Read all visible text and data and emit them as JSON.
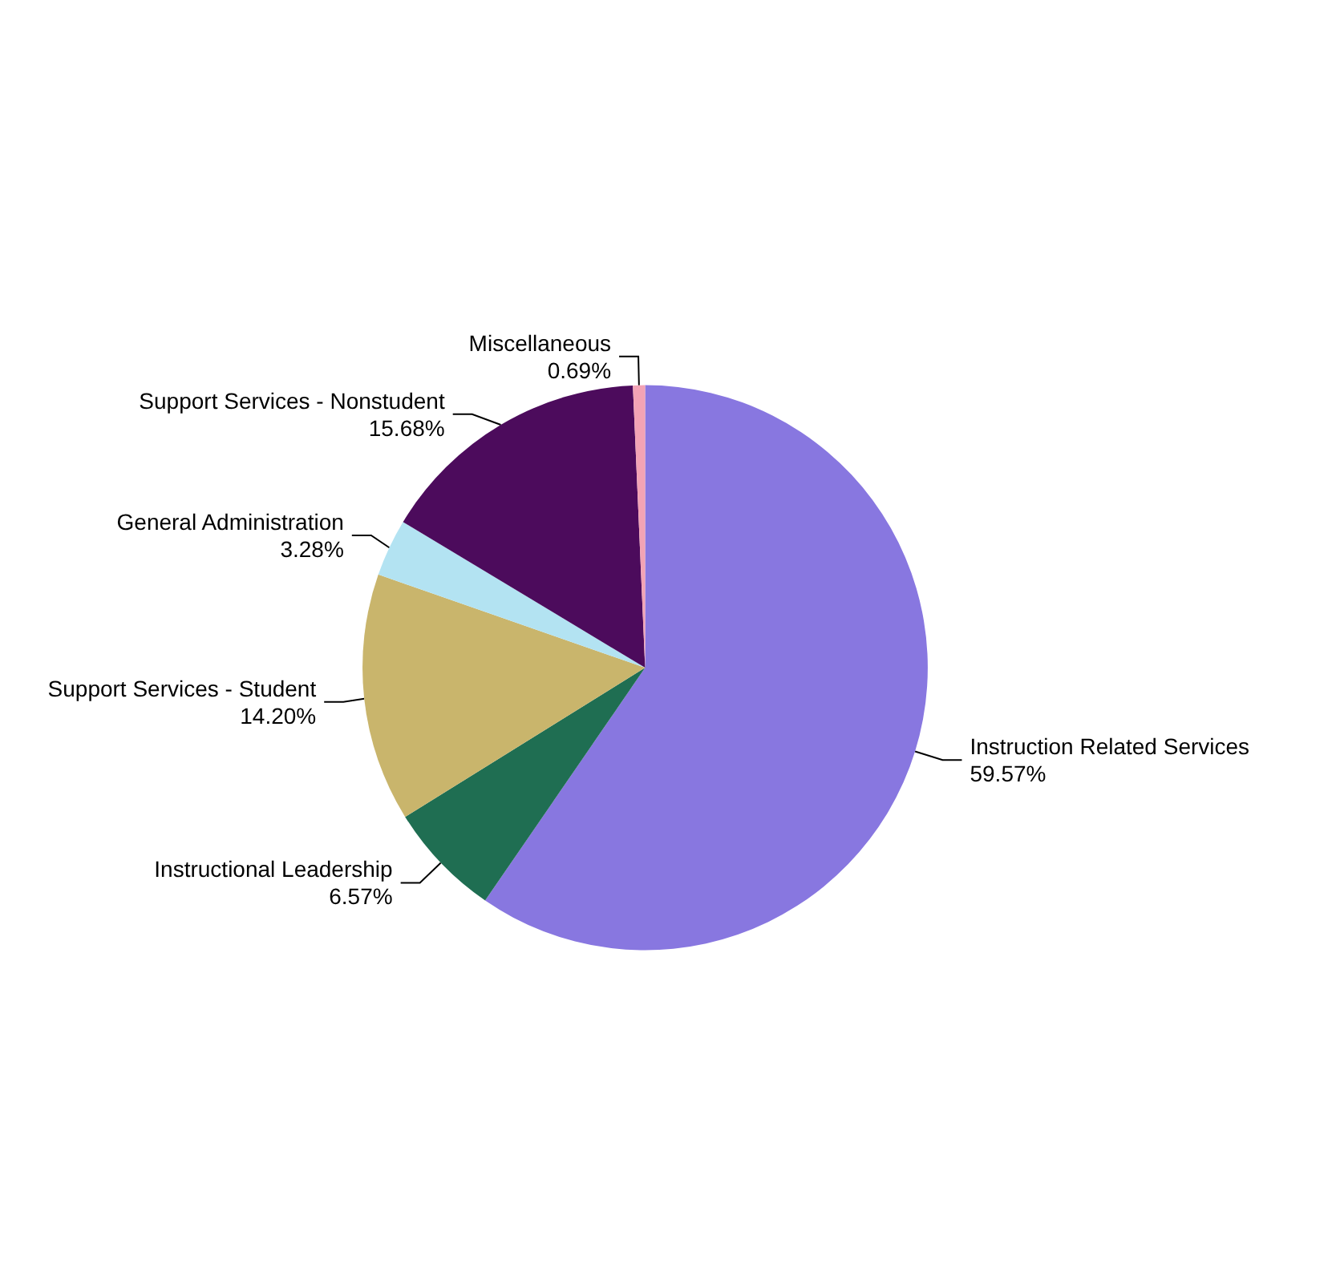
{
  "chart_data": {
    "type": "pie",
    "categories": [
      "Instruction Related Services",
      "Instructional Leadership",
      "Support Services - Student",
      "General Administration",
      "Support Services - Nonstudent",
      "Miscellaneous"
    ],
    "values": [
      59.57,
      6.57,
      14.2,
      3.28,
      15.68,
      0.69
    ],
    "value_labels": [
      "59.57%",
      "6.57%",
      "14.20%",
      "3.28%",
      "15.68%",
      "0.69%"
    ],
    "colors": [
      "#8877e0",
      "#1f6e52",
      "#c9b56c",
      "#b3e3f2",
      "#4c0b5c",
      "#f2a3b5"
    ],
    "legend": false
  }
}
